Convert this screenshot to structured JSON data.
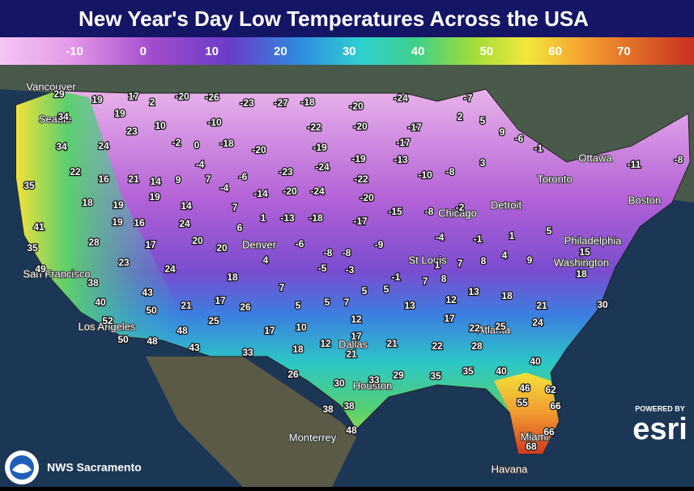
{
  "header": {
    "title": "New Year's Day Low Temperatures Across the USA"
  },
  "legend": {
    "ticks": [
      -10,
      0,
      10,
      20,
      30,
      40,
      50,
      60,
      70
    ]
  },
  "cities": [
    "Vancouver",
    "Seattle",
    "San Francisco",
    "Los Angeles",
    "Denver",
    "St Louis",
    "Chicago",
    "Detroit",
    "Toronto",
    "Ottawa",
    "Boston",
    "Philadelphia",
    "Washington",
    "Atlanta",
    "Dallas",
    "Houston",
    "Miami",
    "Monterrey",
    "Havana"
  ],
  "temperatures": [
    29,
    34,
    19,
    17,
    2,
    -20,
    -26,
    -23,
    -27,
    -18,
    -20,
    -24,
    -7,
    19,
    10,
    -10,
    -22,
    -20,
    -17,
    2,
    5,
    9,
    34,
    24,
    23,
    -2,
    0,
    -18,
    -20,
    -19,
    -17,
    3,
    -6,
    -1,
    22,
    16,
    21,
    14,
    9,
    -4,
    7,
    -6,
    -23,
    -24,
    -19,
    -13,
    -10,
    -8,
    -11,
    -8,
    35,
    18,
    19,
    19,
    14,
    -4,
    -14,
    -20,
    -24,
    -22,
    -20,
    41,
    19,
    16,
    24,
    7,
    1,
    -13,
    -18,
    -17,
    -15,
    -8,
    -2,
    35,
    28,
    17,
    20,
    20,
    6,
    -6,
    -8,
    -8,
    -9,
    -4,
    -1,
    1,
    5,
    49,
    23,
    24,
    4,
    -5,
    -3,
    1,
    7,
    8,
    4,
    9,
    15,
    38,
    18,
    7,
    5,
    5,
    -1,
    7,
    8,
    13,
    18,
    18,
    40,
    43,
    21,
    17,
    26,
    5,
    5,
    7,
    13,
    12,
    21,
    30,
    50,
    52,
    25,
    17,
    10,
    12,
    17,
    22,
    25,
    24,
    48,
    50,
    48,
    43,
    33,
    18,
    12,
    17,
    21,
    21,
    22,
    28,
    40,
    26,
    29,
    35,
    35,
    40,
    30,
    33,
    46,
    62,
    38,
    38,
    55,
    66,
    66,
    48,
    68
  ],
  "footer": {
    "credit": "NWS Sacramento",
    "powered_by": "POWERED BY",
    "brand": "esri"
  }
}
